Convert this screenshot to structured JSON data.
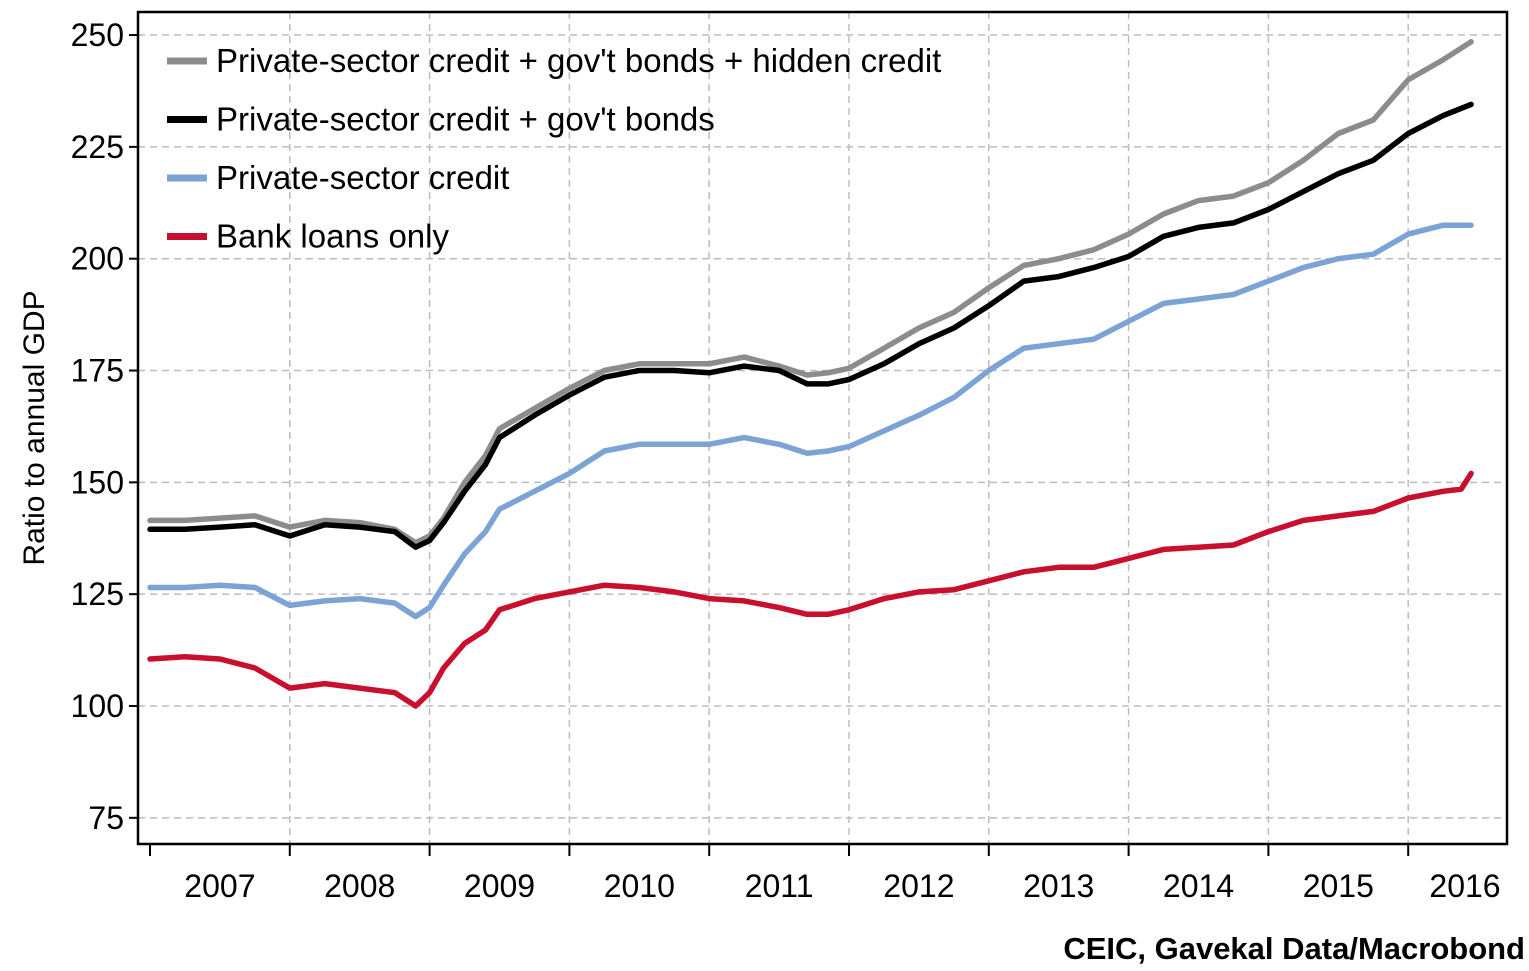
{
  "source": "CEIC, Gavekal Data/Macrobond",
  "chart_data": {
    "type": "line",
    "title": "",
    "ylabel": "Ratio to annual GDP",
    "xlabel": "",
    "ylim": [
      70,
      252
    ],
    "xlim": [
      2006.95,
      2016.55
    ],
    "y_ticks": [
      75,
      100,
      125,
      150,
      175,
      200,
      225,
      250
    ],
    "x_tick_labels": [
      "2007",
      "2008",
      "2009",
      "2010",
      "2011",
      "2012",
      "2013",
      "2014",
      "2015",
      "2016"
    ],
    "grid": true,
    "legend_position": "top-left",
    "series": [
      {
        "name": "Private-sector credit + gov't bonds + hidden credit",
        "color": "#8c8c8c",
        "x": [
          2007.0,
          2007.25,
          2007.5,
          2007.75,
          2008.0,
          2008.25,
          2008.5,
          2008.75,
          2008.9,
          2009.0,
          2009.1,
          2009.25,
          2009.4,
          2009.5,
          2009.75,
          2010.0,
          2010.25,
          2010.5,
          2010.75,
          2011.0,
          2011.25,
          2011.5,
          2011.7,
          2011.85,
          2012.0,
          2012.25,
          2012.5,
          2012.75,
          2013.0,
          2013.25,
          2013.5,
          2013.75,
          2014.0,
          2014.25,
          2014.5,
          2014.75,
          2015.0,
          2015.25,
          2015.5,
          2015.75,
          2016.0,
          2016.25,
          2016.45
        ],
        "values": [
          141.5,
          141.5,
          142,
          142.5,
          140,
          141.5,
          141,
          139.5,
          136.5,
          138,
          142,
          150,
          156,
          162,
          166.5,
          171,
          175,
          176.5,
          176.5,
          176.5,
          178,
          176,
          174,
          174.5,
          175.5,
          180,
          184.5,
          188,
          193.5,
          198.5,
          200,
          202,
          205.5,
          210,
          213,
          214,
          217,
          222,
          228,
          231,
          240,
          244.5,
          248.5
        ]
      },
      {
        "name": "Private-sector credit + gov't bonds",
        "color": "#000000",
        "x": [
          2007.0,
          2007.25,
          2007.5,
          2007.75,
          2008.0,
          2008.25,
          2008.5,
          2008.75,
          2008.9,
          2009.0,
          2009.1,
          2009.25,
          2009.4,
          2009.5,
          2009.75,
          2010.0,
          2010.25,
          2010.5,
          2010.75,
          2011.0,
          2011.25,
          2011.5,
          2011.7,
          2011.85,
          2012.0,
          2012.25,
          2012.5,
          2012.75,
          2013.0,
          2013.25,
          2013.5,
          2013.75,
          2014.0,
          2014.25,
          2014.5,
          2014.75,
          2015.0,
          2015.25,
          2015.5,
          2015.75,
          2016.0,
          2016.25,
          2016.45
        ],
        "values": [
          139.5,
          139.5,
          140,
          140.5,
          138,
          140.5,
          140,
          139,
          135.5,
          137,
          141,
          148,
          154,
          160,
          165,
          169.5,
          173.5,
          175,
          175,
          174.5,
          176,
          175,
          172,
          172,
          173,
          176.5,
          181,
          184.5,
          189.5,
          195,
          196,
          198,
          200.5,
          205,
          207,
          208,
          211,
          215,
          219,
          222,
          228,
          232,
          234.5
        ]
      },
      {
        "name": "Private-sector credit",
        "color": "#7ba3d6",
        "x": [
          2007.0,
          2007.25,
          2007.5,
          2007.75,
          2008.0,
          2008.25,
          2008.5,
          2008.75,
          2008.9,
          2009.0,
          2009.1,
          2009.25,
          2009.4,
          2009.5,
          2009.75,
          2010.0,
          2010.25,
          2010.5,
          2010.75,
          2011.0,
          2011.25,
          2011.5,
          2011.7,
          2011.85,
          2012.0,
          2012.25,
          2012.5,
          2012.75,
          2013.0,
          2013.25,
          2013.5,
          2013.75,
          2014.0,
          2014.25,
          2014.5,
          2014.75,
          2015.0,
          2015.25,
          2015.5,
          2015.75,
          2016.0,
          2016.25,
          2016.45
        ],
        "values": [
          126.5,
          126.5,
          127,
          126.5,
          122.5,
          123.5,
          124,
          123,
          120,
          122,
          127,
          134,
          139,
          144,
          148,
          152,
          157,
          158.5,
          158.5,
          158.5,
          160,
          158.5,
          156.5,
          157,
          158,
          161.5,
          165,
          169,
          175,
          180,
          181,
          182,
          186,
          190,
          191,
          192,
          195,
          198,
          200,
          201,
          205.5,
          207.5,
          207.5
        ]
      },
      {
        "name": "Bank loans only",
        "color": "#c8102e",
        "x": [
          2007.0,
          2007.25,
          2007.5,
          2007.75,
          2008.0,
          2008.25,
          2008.5,
          2008.75,
          2008.9,
          2009.0,
          2009.1,
          2009.25,
          2009.4,
          2009.5,
          2009.75,
          2010.0,
          2010.25,
          2010.5,
          2010.75,
          2011.0,
          2011.25,
          2011.5,
          2011.7,
          2011.85,
          2012.0,
          2012.25,
          2012.5,
          2012.75,
          2013.0,
          2013.25,
          2013.5,
          2013.75,
          2014.0,
          2014.25,
          2014.5,
          2014.75,
          2015.0,
          2015.25,
          2015.5,
          2015.75,
          2016.0,
          2016.25,
          2016.38,
          2016.45
        ],
        "values": [
          110.5,
          111,
          110.5,
          108.5,
          104,
          105,
          104,
          103,
          100,
          103,
          108.5,
          114,
          117,
          121.5,
          124,
          125.5,
          127,
          126.5,
          125.5,
          124,
          123.5,
          122,
          120.5,
          120.5,
          121.5,
          124,
          125.5,
          126,
          128,
          130,
          131,
          131,
          133,
          135,
          135.5,
          136,
          139,
          141.5,
          142.5,
          143.5,
          146.5,
          148,
          148.5,
          152
        ]
      }
    ]
  }
}
